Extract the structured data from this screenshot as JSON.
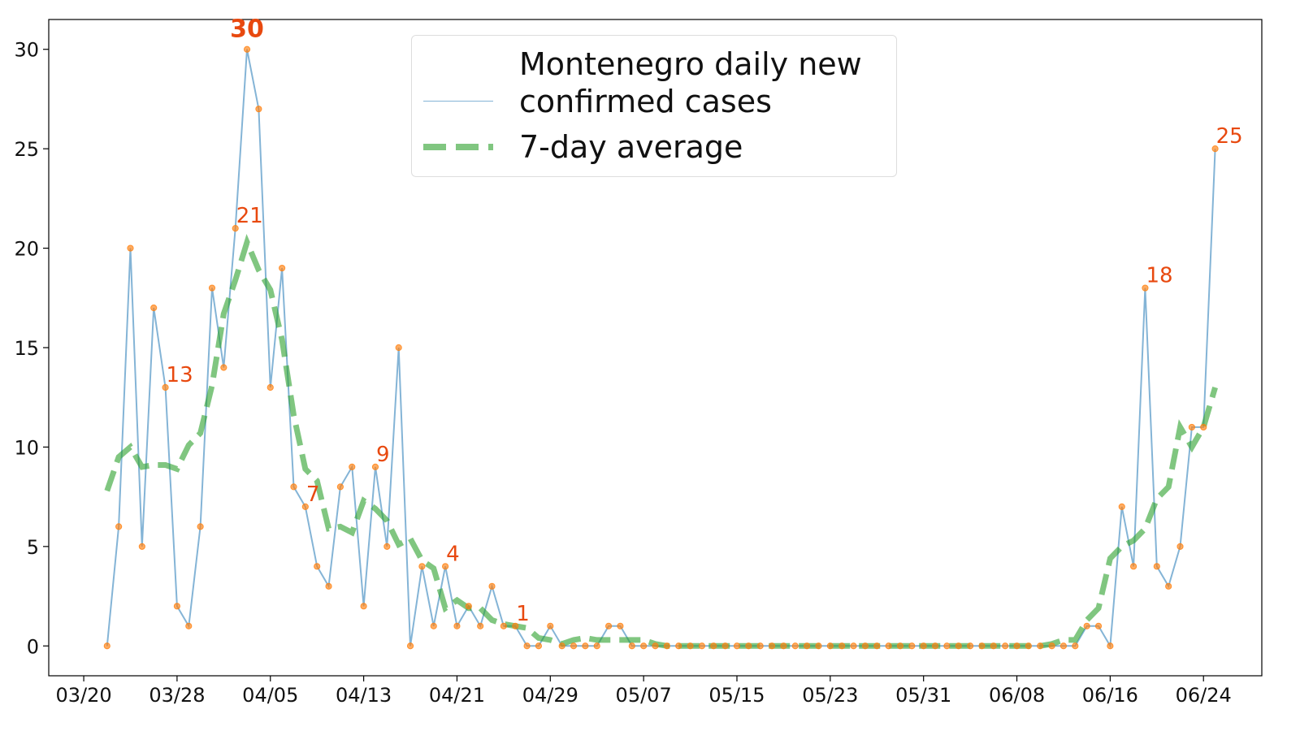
{
  "chart_data": {
    "type": "line",
    "x": [
      "03/22",
      "03/23",
      "03/24",
      "03/25",
      "03/26",
      "03/27",
      "03/28",
      "03/29",
      "03/30",
      "03/31",
      "04/01",
      "04/02",
      "04/03",
      "04/04",
      "04/05",
      "04/06",
      "04/07",
      "04/08",
      "04/09",
      "04/10",
      "04/11",
      "04/12",
      "04/13",
      "04/14",
      "04/15",
      "04/16",
      "04/17",
      "04/18",
      "04/19",
      "04/20",
      "04/21",
      "04/22",
      "04/23",
      "04/24",
      "04/25",
      "04/26",
      "04/27",
      "04/28",
      "04/29",
      "04/30",
      "05/01",
      "05/02",
      "05/03",
      "05/04",
      "05/05",
      "05/06",
      "05/07",
      "05/08",
      "05/09",
      "05/10",
      "05/11",
      "05/12",
      "05/13",
      "05/14",
      "05/15",
      "05/16",
      "05/17",
      "05/18",
      "05/19",
      "05/20",
      "05/21",
      "05/22",
      "05/23",
      "05/24",
      "05/25",
      "05/26",
      "05/27",
      "05/28",
      "05/29",
      "05/30",
      "05/31",
      "06/01",
      "06/02",
      "06/03",
      "06/04",
      "06/05",
      "06/06",
      "06/07",
      "06/08",
      "06/09",
      "06/10",
      "06/11",
      "06/12",
      "06/13",
      "06/14",
      "06/15",
      "06/16",
      "06/17",
      "06/18",
      "06/19",
      "06/20",
      "06/21",
      "06/22",
      "06/23",
      "06/24",
      "06/25"
    ],
    "series": [
      {
        "name": "Montenegro daily new confirmed cases",
        "color": "#1f77b4",
        "marker_color": "#ff7f0e",
        "label_color": "#e8490f",
        "values": [
          0,
          6,
          20,
          5,
          17,
          13,
          2,
          1,
          6,
          18,
          14,
          21,
          30,
          27,
          13,
          19,
          8,
          7,
          4,
          3,
          8,
          9,
          2,
          9,
          5,
          15,
          0,
          4,
          1,
          4,
          1,
          2,
          1,
          3,
          1,
          1,
          0,
          0,
          1,
          0,
          0,
          0,
          0,
          1,
          1,
          0,
          0,
          0,
          0,
          0,
          0,
          0,
          0,
          0,
          0,
          0,
          0,
          0,
          0,
          0,
          0,
          0,
          0,
          0,
          0,
          0,
          0,
          0,
          0,
          0,
          0,
          0,
          0,
          0,
          0,
          0,
          0,
          0,
          0,
          0,
          0,
          0,
          0,
          0,
          1,
          1,
          0,
          7,
          4,
          18,
          4,
          3,
          5,
          11,
          11,
          25
        ],
        "value_labels": [
          null,
          null,
          null,
          null,
          null,
          "13",
          null,
          null,
          null,
          null,
          null,
          "21",
          "30",
          null,
          null,
          null,
          null,
          "7",
          null,
          null,
          null,
          null,
          null,
          "9",
          null,
          null,
          null,
          null,
          null,
          "4",
          null,
          null,
          null,
          null,
          null,
          "1",
          null,
          null,
          null,
          null,
          null,
          null,
          null,
          null,
          null,
          null,
          null,
          null,
          null,
          null,
          null,
          null,
          null,
          null,
          null,
          null,
          null,
          null,
          null,
          null,
          null,
          null,
          null,
          null,
          null,
          null,
          null,
          null,
          null,
          null,
          null,
          null,
          null,
          null,
          null,
          null,
          null,
          null,
          null,
          null,
          null,
          null,
          null,
          null,
          null,
          null,
          null,
          null,
          null,
          "18",
          null,
          null,
          null,
          null,
          null,
          "25"
        ]
      },
      {
        "name": "7-day average",
        "color": "#2ca02c",
        "dashed": true,
        "values": [
          7.8,
          9.5,
          10.0,
          9.0,
          9.1,
          9.1,
          8.9,
          10.1,
          10.7,
          13.1,
          16.7,
          18.4,
          20.3,
          18.9,
          17.9,
          15.4,
          11.6,
          8.9,
          8.3,
          5.9,
          6.0,
          5.7,
          7.3,
          6.9,
          6.3,
          5.1,
          5.4,
          4.3,
          3.9,
          1.9,
          2.3,
          1.9,
          1.9,
          1.3,
          1.1,
          1.0,
          0.9,
          0.4,
          0.3,
          0.1,
          0.3,
          0.4,
          0.3,
          0.3,
          0.3,
          0.3,
          0.3,
          0.1,
          0,
          0,
          0,
          0,
          0,
          0,
          0,
          0,
          0,
          0,
          0,
          0,
          0,
          0,
          0,
          0,
          0,
          0,
          0,
          0,
          0,
          0,
          0,
          0,
          0,
          0,
          0,
          0,
          0,
          0,
          0,
          0,
          0,
          0.1,
          0.3,
          0.3,
          1.3,
          1.9,
          4.4,
          5.0,
          5.3,
          5.9,
          7.4,
          8.0,
          11.0,
          10.0,
          11.0,
          13.0
        ]
      }
    ],
    "xlim": [
      "03/17",
      "06/29"
    ],
    "xticks": [
      "03/20",
      "03/28",
      "04/05",
      "04/13",
      "04/21",
      "04/29",
      "05/07",
      "05/15",
      "05/23",
      "05/31",
      "06/08",
      "06/16",
      "06/24"
    ],
    "ylim": [
      -1.5,
      31.5
    ],
    "yticks": [
      0,
      5,
      10,
      15,
      20,
      25,
      30
    ]
  }
}
